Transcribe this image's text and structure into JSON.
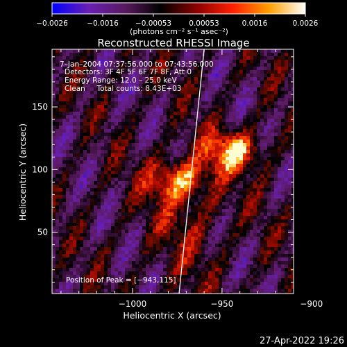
{
  "chart_data": {
    "type": "heatmap",
    "title": "Reconstructed RHESSI Image",
    "xlabel": "Heliocentric X (arcsec)",
    "ylabel": "Heliocentric Y (arcsec)",
    "xlim": [
      -1045,
      -910
    ],
    "ylim": [
      1,
      196
    ],
    "x_ticks": [
      {
        "value": -1000,
        "label": "−1000"
      },
      {
        "value": -950,
        "label": "−950"
      },
      {
        "value": -900,
        "label": "−900"
      }
    ],
    "y_ticks": [
      {
        "value": 50,
        "label": "50"
      },
      {
        "value": 100,
        "label": "100"
      },
      {
        "value": 150,
        "label": "150"
      }
    ],
    "colorbar": {
      "range": [
        -0.0026,
        0.0026
      ],
      "tick_labels": [
        "−0.0026",
        "−0.0016",
        "−0.00053",
        "0.00053",
        "0.0016",
        "0.0026"
      ],
      "units_text": "photons cm⁻² s⁻¹ asec⁻²",
      "colors": [
        "#0000ff",
        "#6a1fb4",
        "#5a1a60",
        "#000000",
        "#8b0000",
        "#ff2000",
        "#ffa000",
        "#ffffff"
      ]
    },
    "annotations": {
      "time_range": "7–Jan–2004 07:37:56.000 to 07:43:56.000",
      "detectors": "Detectors: 3F 4F 5F 6F 7F 8F, Att 0",
      "energy_range": "Energy Range: 12.0 – 25.0 keV",
      "method_counts": "Clean     Total counts: 8.43E+03",
      "peak": "Position of Peak = [−943,115]"
    },
    "peak_position": [
      -943,
      115
    ],
    "sources": [
      {
        "x": -975,
        "y": 92,
        "value": 0.0022
      },
      {
        "x": -944,
        "y": 115,
        "value": 0.0026
      }
    ],
    "limb_line": [
      [
        -960,
        196
      ],
      [
        -974,
        1
      ]
    ],
    "timestamp": "27-Apr-2022 19:26"
  }
}
